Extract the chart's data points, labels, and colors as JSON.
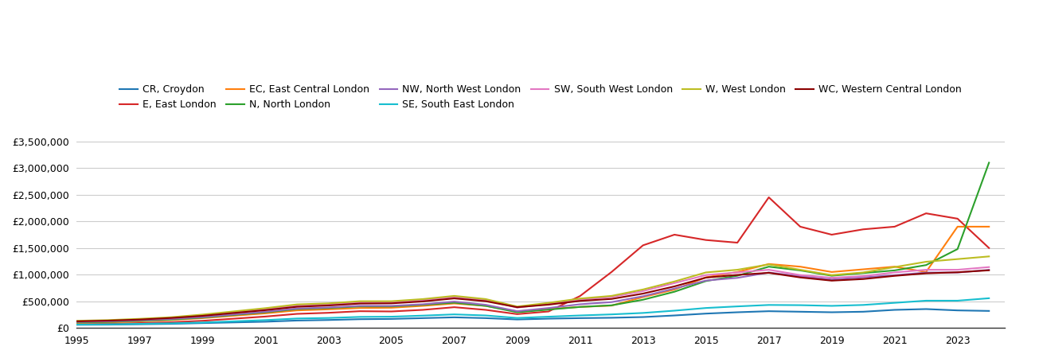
{
  "years": [
    1995,
    1996,
    1997,
    1998,
    1999,
    2000,
    2001,
    2002,
    2003,
    2004,
    2005,
    2006,
    2007,
    2008,
    2009,
    2010,
    2011,
    2012,
    2013,
    2014,
    2015,
    2016,
    2017,
    2018,
    2019,
    2020,
    2021,
    2022,
    2023,
    2024
  ],
  "series": [
    {
      "name": "CR, Croydon",
      "color": "#1f77b4",
      "values": [
        60000,
        63000,
        70000,
        78000,
        92000,
        105000,
        118000,
        140000,
        150000,
        165000,
        170000,
        185000,
        200000,
        185000,
        160000,
        175000,
        185000,
        192000,
        205000,
        235000,
        270000,
        295000,
        315000,
        305000,
        295000,
        305000,
        340000,
        355000,
        330000,
        320000
      ]
    },
    {
      "name": "E, East London",
      "color": "#d62728",
      "values": [
        75000,
        80000,
        92000,
        108000,
        135000,
        175000,
        215000,
        265000,
        285000,
        315000,
        310000,
        340000,
        390000,
        340000,
        260000,
        310000,
        600000,
        1050000,
        1550000,
        1750000,
        1650000,
        1600000,
        2450000,
        1900000,
        1750000,
        1850000,
        1900000,
        2150000,
        2050000,
        1500000
      ]
    },
    {
      "name": "EC, East Central London",
      "color": "#ff7f0e",
      "values": [
        95000,
        105000,
        125000,
        150000,
        185000,
        230000,
        275000,
        330000,
        350000,
        375000,
        380000,
        415000,
        460000,
        415000,
        310000,
        355000,
        395000,
        420000,
        580000,
        720000,
        950000,
        1050000,
        1200000,
        1150000,
        1050000,
        1100000,
        1150000,
        1050000,
        1900000,
        1900000
      ]
    },
    {
      "name": "N, North London",
      "color": "#2ca02c",
      "values": [
        105000,
        115000,
        135000,
        158000,
        195000,
        245000,
        295000,
        355000,
        375000,
        405000,
        405000,
        435000,
        475000,
        415000,
        295000,
        345000,
        395000,
        425000,
        530000,
        680000,
        880000,
        980000,
        1150000,
        1080000,
        980000,
        1030000,
        1080000,
        1180000,
        1480000,
        3100000
      ]
    },
    {
      "name": "NW, North West London",
      "color": "#9467bd",
      "values": [
        115000,
        125000,
        145000,
        170000,
        205000,
        255000,
        305000,
        365000,
        385000,
        415000,
        415000,
        445000,
        495000,
        435000,
        315000,
        375000,
        445000,
        485000,
        595000,
        740000,
        890000,
        940000,
        1040000,
        970000,
        910000,
        950000,
        990000,
        1040000,
        1040000,
        1090000
      ]
    },
    {
      "name": "SE, South East London",
      "color": "#17becf",
      "values": [
        65000,
        70000,
        78000,
        88000,
        103000,
        125000,
        148000,
        178000,
        188000,
        208000,
        212000,
        232000,
        255000,
        235000,
        188000,
        212000,
        235000,
        255000,
        282000,
        325000,
        375000,
        405000,
        432000,
        428000,
        415000,
        432000,
        472000,
        512000,
        512000,
        558000
      ]
    },
    {
      "name": "SW, South West London",
      "color": "#e377c2",
      "values": [
        125000,
        138000,
        158000,
        188000,
        232000,
        292000,
        352000,
        422000,
        442000,
        482000,
        482000,
        522000,
        582000,
        522000,
        382000,
        452000,
        532000,
        582000,
        692000,
        842000,
        992000,
        1042000,
        1092000,
        992000,
        942000,
        972000,
        1042000,
        1092000,
        1092000,
        1142000
      ]
    },
    {
      "name": "W, West London",
      "color": "#bcbd22",
      "values": [
        135000,
        148000,
        172000,
        202000,
        252000,
        312000,
        372000,
        442000,
        462000,
        502000,
        502000,
        542000,
        602000,
        542000,
        402000,
        472000,
        552000,
        602000,
        722000,
        872000,
        1042000,
        1092000,
        1192000,
        1092000,
        992000,
        1042000,
        1142000,
        1242000,
        1292000,
        1342000
      ]
    },
    {
      "name": "WC, Western Central London",
      "color": "#8B0000",
      "values": [
        125000,
        138000,
        158000,
        188000,
        228000,
        282000,
        335000,
        398000,
        422000,
        458000,
        462000,
        498000,
        555000,
        502000,
        390000,
        438000,
        508000,
        545000,
        645000,
        780000,
        945000,
        995000,
        1035000,
        948000,
        888000,
        918000,
        978000,
        1025000,
        1045000,
        1082000
      ]
    }
  ],
  "ylim": [
    0,
    3700000
  ],
  "yticks": [
    0,
    500000,
    1000000,
    1500000,
    2000000,
    2500000,
    3000000,
    3500000
  ],
  "ytick_labels": [
    "£0",
    "£500,000",
    "£1,000,000",
    "£1,500,000",
    "£2,000,000",
    "£2,500,000",
    "£3,000,000",
    "£3,500,000"
  ],
  "xtick_labels": [
    "1995",
    "1997",
    "1999",
    "2001",
    "2003",
    "2005",
    "2007",
    "2009",
    "2011",
    "2013",
    "2015",
    "2017",
    "2019",
    "2021",
    "2023"
  ],
  "background_color": "#ffffff",
  "grid_color": "#cccccc",
  "legend_row1": [
    "CR, Croydon",
    "E, East London",
    "EC, East Central London",
    "N, North London",
    "NW, North West London",
    "SE, South East London"
  ],
  "legend_row2": [
    "SW, South West London",
    "W, West London",
    "WC, Western Central London"
  ]
}
